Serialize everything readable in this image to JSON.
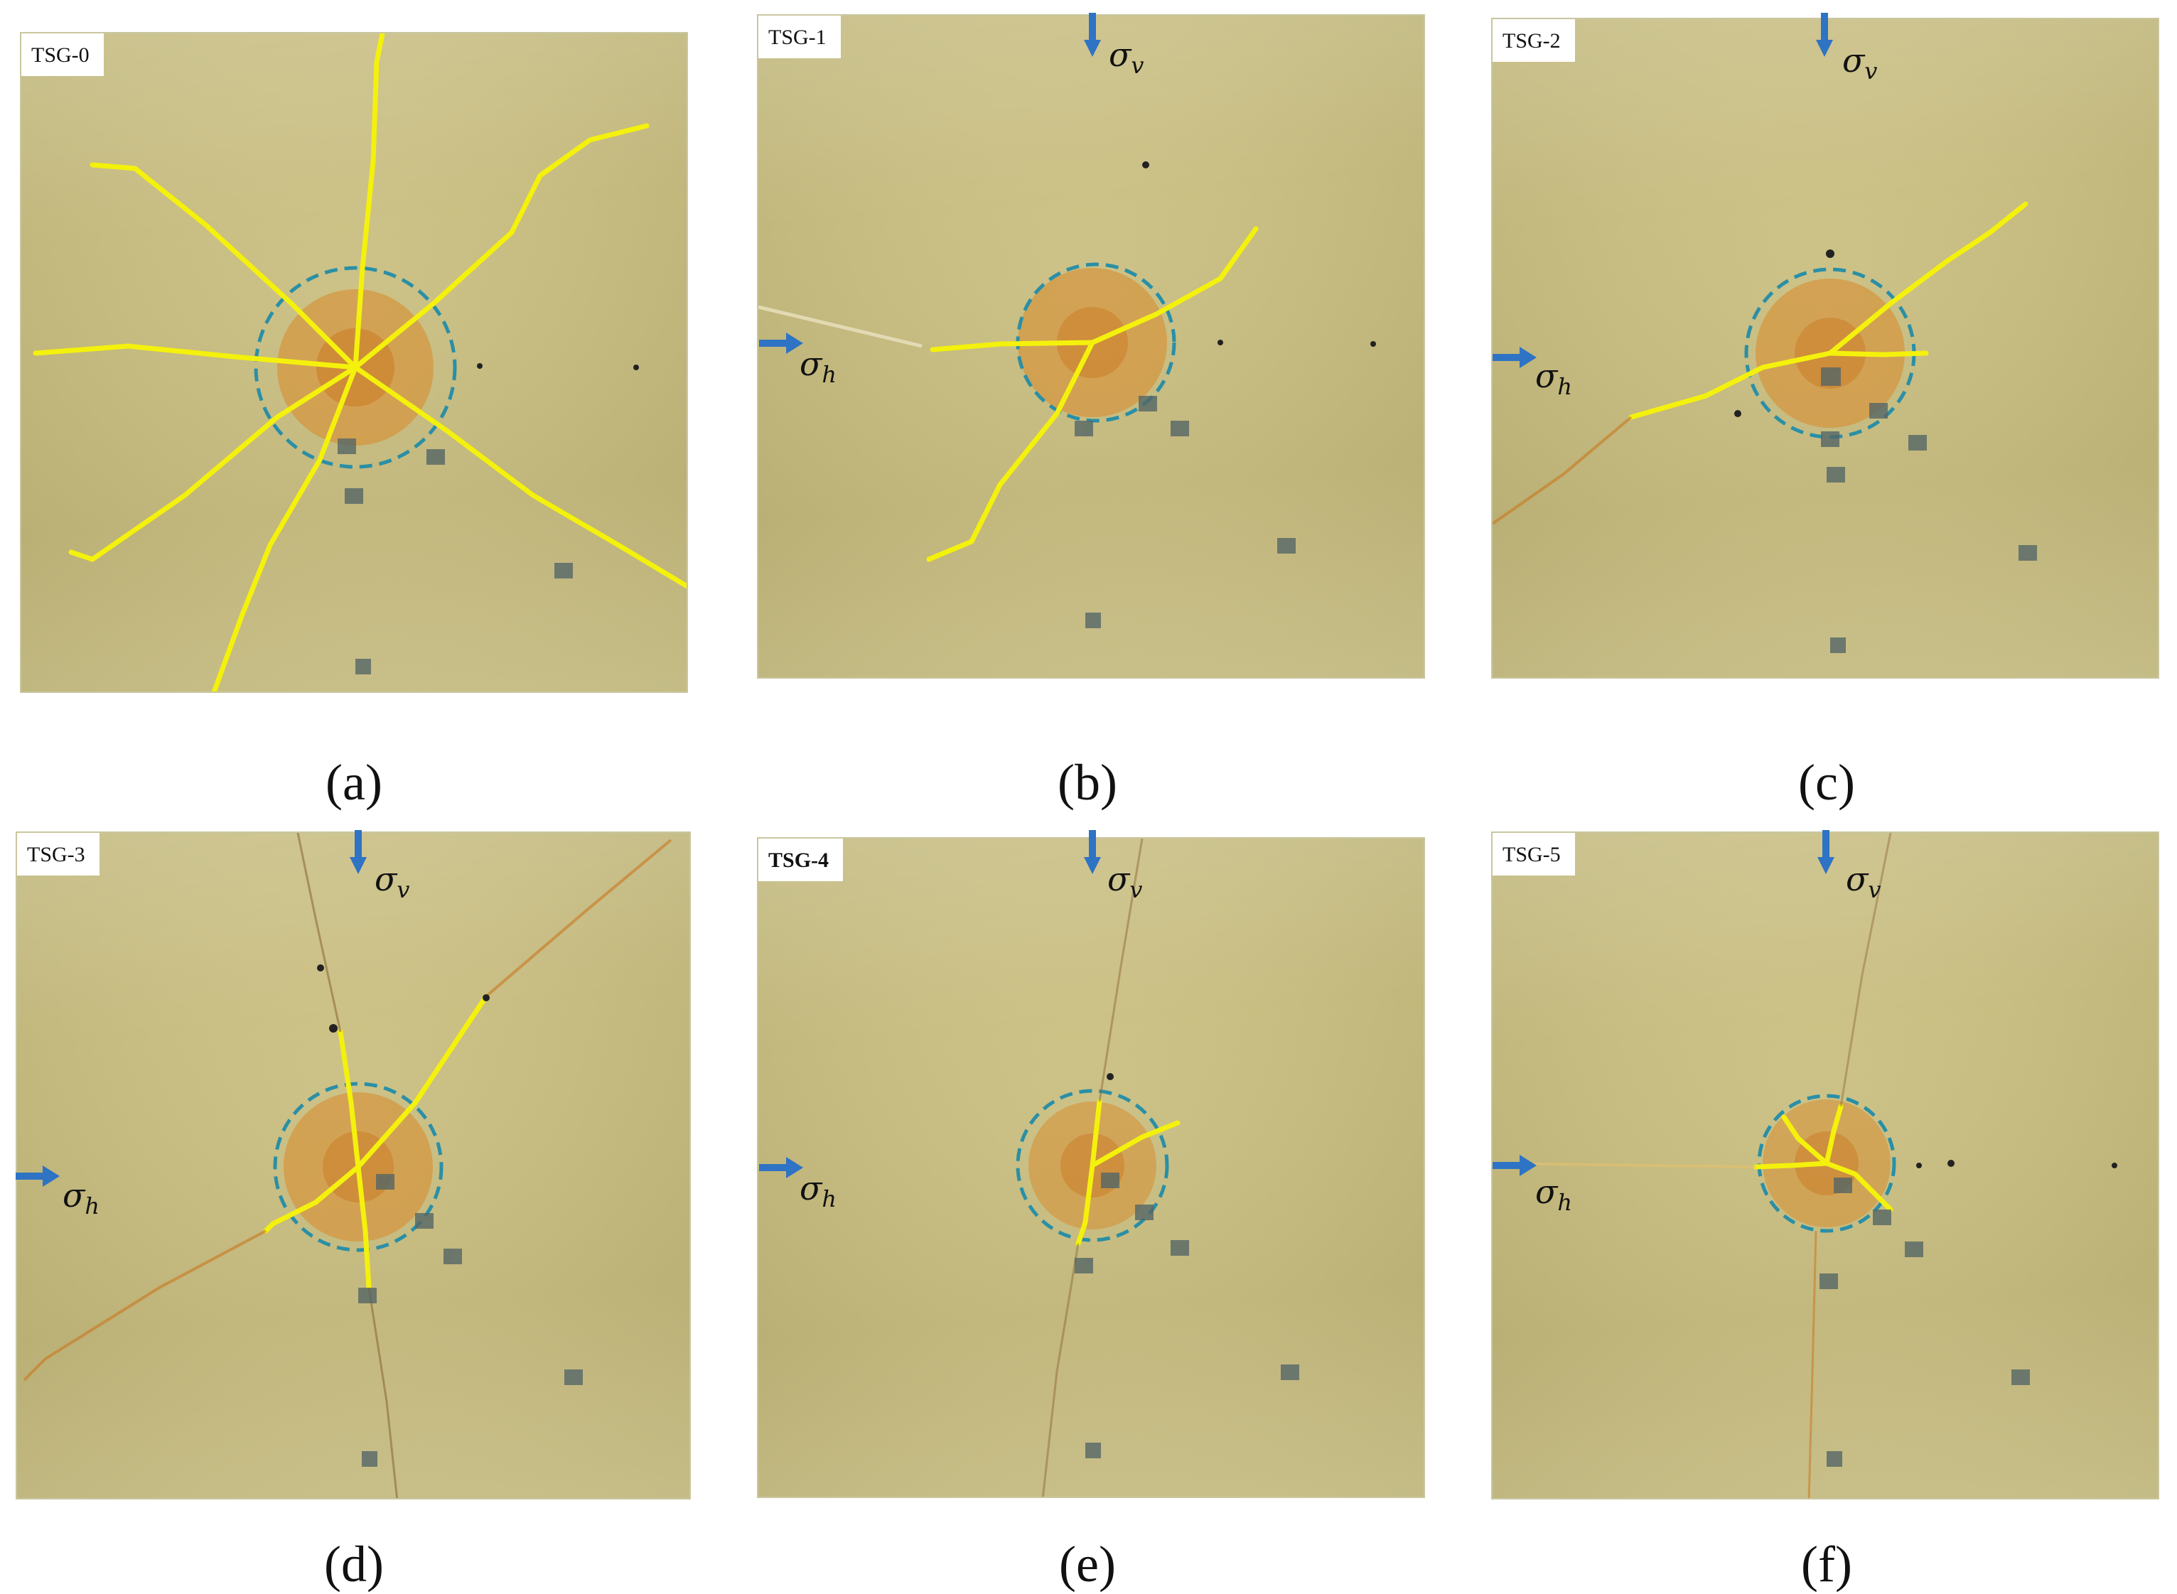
{
  "colors": {
    "plate": "#c8bd82",
    "crack": "#f4f10c",
    "circle": "#2a8fa6",
    "arrow": "#2e73c4",
    "stain": "#d8892a"
  },
  "panels": [
    {
      "tag": "TSG-0",
      "caption": "(a)",
      "has_stress_arrows": false
    },
    {
      "tag": "TSG-1",
      "caption": "(b)",
      "has_stress_arrows": true
    },
    {
      "tag": "TSG-2",
      "caption": "(c)",
      "has_stress_arrows": true
    },
    {
      "tag": "TSG-3",
      "caption": "(d)",
      "has_stress_arrows": true
    },
    {
      "tag": "TSG-4",
      "caption": "(e)",
      "has_stress_arrows": true
    },
    {
      "tag": "TSG-5",
      "caption": "(f)",
      "has_stress_arrows": true
    }
  ],
  "stress_labels": {
    "vertical_symbol": "σ",
    "vertical_sub": "v",
    "horizontal_symbol": "σ",
    "horizontal_sub": "h"
  }
}
